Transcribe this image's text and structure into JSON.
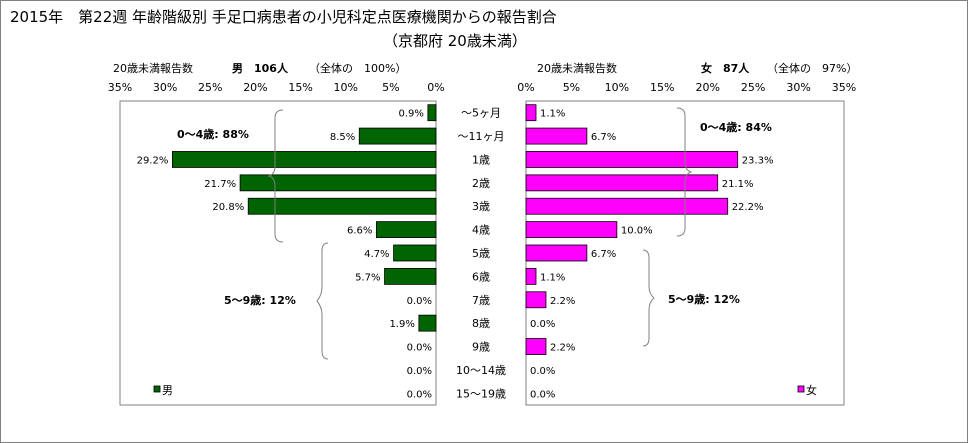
{
  "title": "2015年　第22週 年齢階級別 手足口病患者の小児科定点医療機関からの報告割合",
  "subtitle": "（京都府 20歳未満）",
  "chart_data": {
    "type": "bar",
    "categories": [
      "〜5ヶ月",
      "〜11ヶ月",
      "1歳",
      "2歳",
      "3歳",
      "4歳",
      "5歳",
      "6歳",
      "7歳",
      "8歳",
      "9歳",
      "10〜14歳",
      "15〜19歳"
    ],
    "axis_ticks": [
      "35%",
      "30%",
      "25%",
      "20%",
      "15%",
      "10%",
      "5%",
      "0%"
    ],
    "axis_ticks_right": [
      "0%",
      "5%",
      "10%",
      "15%",
      "20%",
      "25%",
      "30%",
      "35%"
    ],
    "xlim": [
      0,
      35
    ],
    "colors": {
      "male": "#006400",
      "female": "#ff00ff"
    },
    "series": [
      {
        "name": "男",
        "header_label": "20歳未満報告数",
        "header_bold": "男　106人",
        "header_total": "（全体の　100%）",
        "values": [
          0.9,
          8.5,
          29.2,
          21.7,
          20.8,
          6.6,
          4.7,
          5.7,
          0.0,
          1.9,
          0.0,
          0.0,
          0.0
        ],
        "labels": [
          "0.9%",
          "8.5%",
          "29.2%",
          "21.7%",
          "20.8%",
          "6.6%",
          "4.7%",
          "5.7%",
          "0.0%",
          "1.9%",
          "0.0%",
          "0.0%",
          "0.0%"
        ]
      },
      {
        "name": "女",
        "header_label": "20歳未満報告数",
        "header_bold": "女　87人",
        "header_total": "（全体の　97%）",
        "values": [
          1.1,
          6.7,
          23.3,
          21.1,
          22.2,
          10.0,
          6.7,
          1.1,
          2.2,
          0.0,
          2.2,
          0.0,
          0.0
        ],
        "labels": [
          "1.1%",
          "6.7%",
          "23.3%",
          "21.1%",
          "22.2%",
          "10.0%",
          "6.7%",
          "1.1%",
          "2.2%",
          "0.0%",
          "2.2%",
          "0.0%",
          "0.0%"
        ]
      }
    ],
    "annotations": {
      "male_0_4": "0〜4歳: 88%",
      "male_5_9": "5〜9歳: 12%",
      "female_0_4": "0〜4歳: 84%",
      "female_5_9": "5〜9歳: 12%"
    }
  }
}
